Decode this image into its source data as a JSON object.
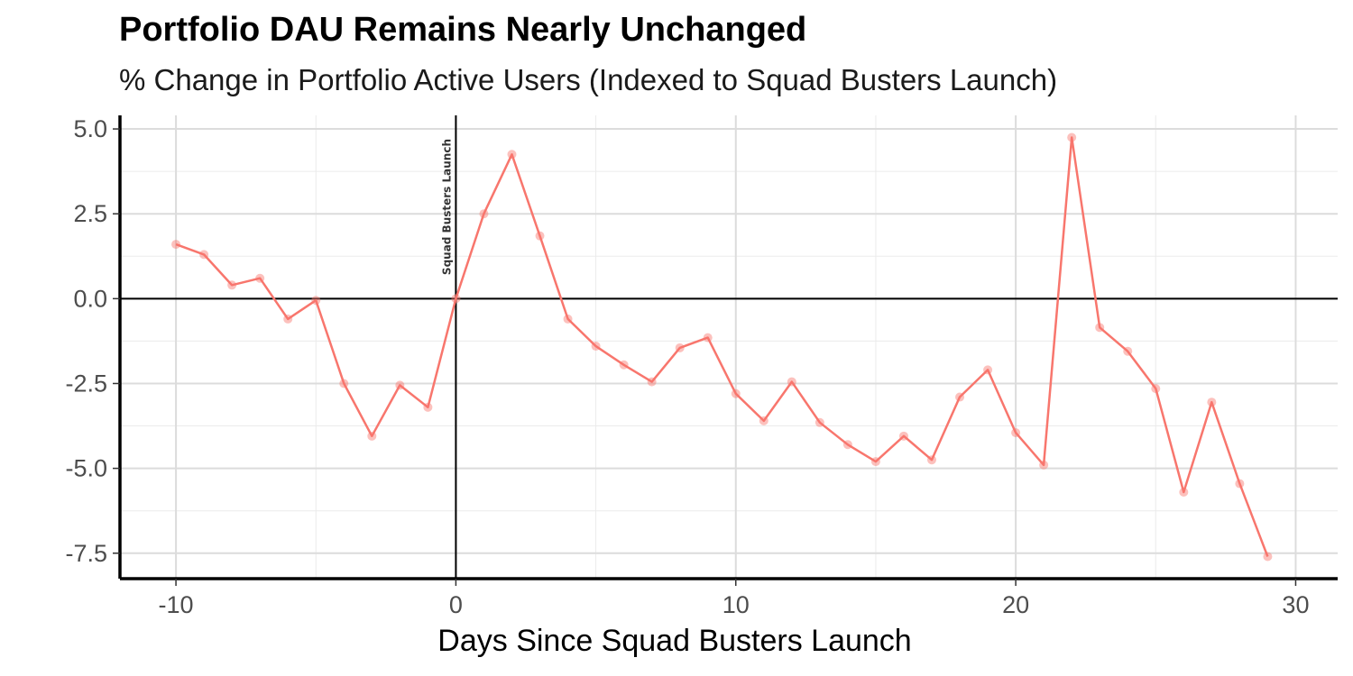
{
  "chart_data": {
    "type": "line",
    "title": "Portfolio DAU Remains Nearly Unchanged",
    "subtitle": "% Change in Portfolio Active Users (Indexed to Squad Busters Launch)",
    "xlabel": "Days Since Squad Busters Launch",
    "ylabel": "",
    "xlim": [
      -12,
      31.5
    ],
    "ylim": [
      -8.25,
      5.4
    ],
    "x_ticks": [
      -10,
      0,
      10,
      20,
      30
    ],
    "x_tick_labels": [
      "-10",
      "0",
      "10",
      "20",
      "30"
    ],
    "y_ticks": [
      5.0,
      2.5,
      0.0,
      -2.5,
      -5.0,
      -7.5
    ],
    "y_tick_labels": [
      "5.0",
      "2.5",
      "0.0",
      "-2.5",
      "-5.0",
      "-7.5"
    ],
    "grid": true,
    "series": [
      {
        "x": [
          -10,
          -9,
          -8,
          -7,
          -6,
          -5,
          -4,
          -3,
          -2,
          -1,
          0,
          1,
          2,
          3,
          4,
          5,
          6,
          7,
          8,
          9,
          10,
          11,
          12,
          13,
          14,
          15,
          16,
          17,
          18,
          19,
          20,
          21,
          22,
          23,
          24,
          25,
          26,
          27,
          28,
          29
        ],
        "values": [
          1.6,
          1.3,
          0.4,
          0.6,
          -0.6,
          -0.05,
          -2.5,
          -4.05,
          -2.55,
          -3.2,
          0.0,
          2.5,
          4.25,
          1.85,
          -0.6,
          -1.4,
          -1.95,
          -2.45,
          -1.45,
          -1.15,
          -2.8,
          -3.6,
          -2.45,
          -3.65,
          -4.3,
          -4.8,
          -4.05,
          -4.75,
          -2.9,
          -2.1,
          -3.95,
          -4.9,
          4.75,
          -0.85,
          -1.55,
          -2.65,
          -5.7,
          -3.05,
          -5.45,
          -7.6
        ],
        "color": "#f8766d"
      }
    ],
    "reference_lines": [
      {
        "axis": "x",
        "value": 0,
        "label": "Squad Busters Launch",
        "color": "#000000"
      },
      {
        "axis": "y",
        "value": 0,
        "color": "#000000"
      }
    ]
  }
}
